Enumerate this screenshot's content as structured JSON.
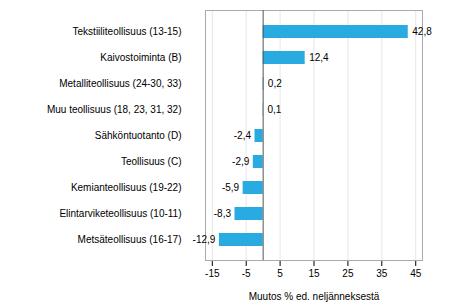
{
  "chart_data": {
    "type": "bar",
    "orientation": "horizontal",
    "categories": [
      "Metsäteollisuus (16-17)",
      "Elintarviketeollisuus (10-11)",
      "Kemianteollisuus (19-22)",
      "Teollisuus (C)",
      "Sähköntuotanto (D)",
      "Muu teollisuus (18, 23, 31, 32)",
      "Metalliteollisuus (24-30, 33)",
      "Kaivostoiminta (B)",
      "Tekstiiliteollisuus (13-15)"
    ],
    "values": [
      -12.9,
      -8.3,
      -5.9,
      -2.9,
      -2.4,
      0.1,
      0.2,
      12.4,
      42.8
    ],
    "value_labels": [
      "-12,9",
      "-8,3",
      "-5,9",
      "-2,9",
      "-2,4",
      "0,1",
      "0,2",
      "12,4",
      "42,8"
    ],
    "data_labels": true,
    "color": "#29abe2",
    "xlabel": "Muutos % ed. neljänneksestä",
    "xlim": [
      -17,
      47
    ],
    "xticks": [
      -15,
      -5,
      5,
      15,
      25,
      35,
      45
    ],
    "grid": true
  }
}
